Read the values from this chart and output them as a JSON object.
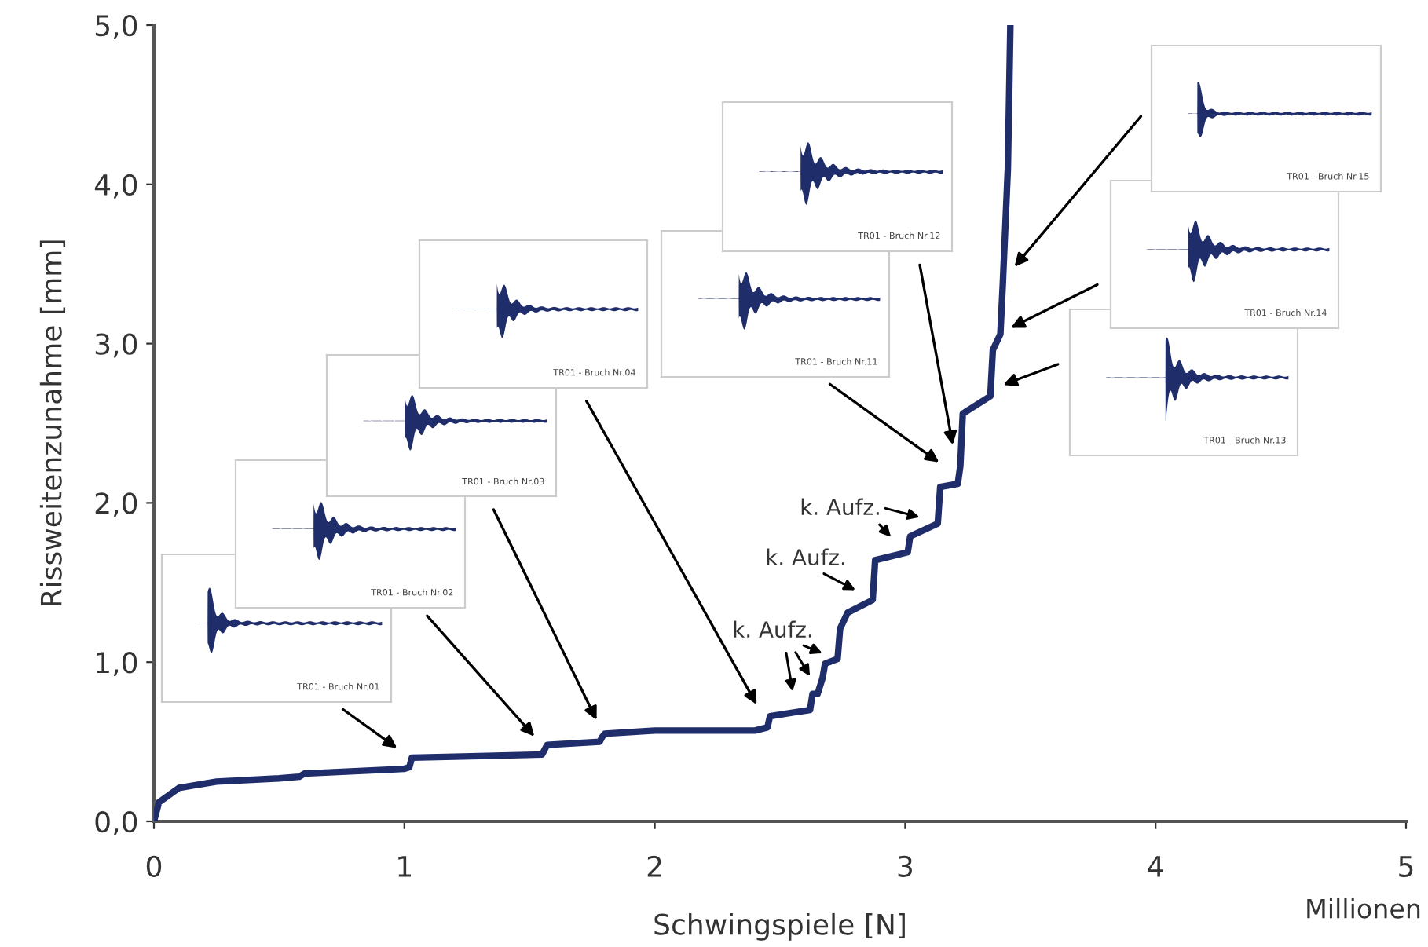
{
  "chart_data": {
    "type": "line",
    "xlabel": "Schwingspiele [N]",
    "ylabel": "Rissweitenzunahme [mm]",
    "x": [
      0,
      0.02,
      0.1,
      0.25,
      0.5,
      0.58,
      0.6,
      1.0,
      1.02,
      1.03,
      1.3,
      1.55,
      1.56,
      1.57,
      1.78,
      1.79,
      1.8,
      2.0,
      2.2,
      2.4,
      2.45,
      2.46,
      2.62,
      2.63,
      2.65,
      2.67,
      2.68,
      2.73,
      2.74,
      2.77,
      2.87,
      2.88,
      3.01,
      3.02,
      3.13,
      3.14,
      3.21,
      3.22,
      3.23,
      3.34,
      3.35,
      3.38,
      3.39,
      3.41,
      3.42
    ],
    "series": [
      {
        "color": "#1f2d6b",
        "values": [
          0,
          0.12,
          0.21,
          0.25,
          0.27,
          0.28,
          0.3,
          0.33,
          0.34,
          0.4,
          0.41,
          0.42,
          0.45,
          0.48,
          0.5,
          0.53,
          0.55,
          0.57,
          0.57,
          0.57,
          0.59,
          0.66,
          0.7,
          0.8,
          0.8,
          0.9,
          0.99,
          1.02,
          1.21,
          1.31,
          1.39,
          1.64,
          1.69,
          1.79,
          1.87,
          2.1,
          2.12,
          2.23,
          2.56,
          2.67,
          2.96,
          3.06,
          3.38,
          4.1,
          4.99
        ]
      }
    ],
    "xlim": [
      0,
      5
    ],
    "xticks": [
      0,
      1,
      2,
      3,
      4,
      5
    ],
    "ylim": [
      0,
      5
    ],
    "yticks": [
      {
        "value": 0,
        "label": "0,0"
      },
      {
        "value": 1,
        "label": "1,0"
      },
      {
        "value": 2,
        "label": "2,0"
      },
      {
        "value": 3,
        "label": "3,0"
      },
      {
        "value": 4,
        "label": "4,0"
      },
      {
        "value": 5,
        "label": "5,0"
      }
    ],
    "grid": false,
    "legend": false,
    "marker": "none",
    "line_style": "solid",
    "annotations": [
      "TR01 - Bruch Nr.01",
      "TR01 - Bruch Nr.02",
      "TR01 - Bruch Nr.03",
      "TR01 - Bruch Nr.04",
      "TR01 - Bruch Nr.11",
      "TR01 - Bruch Nr.12",
      "TR01 - Bruch Nr.13",
      "TR01 - Bruch Nr.14",
      "TR01 - Bruch Nr.15",
      "k. Aufz.",
      "k. Aufz.",
      "k. Aufz.",
      "Millionen"
    ]
  }
}
